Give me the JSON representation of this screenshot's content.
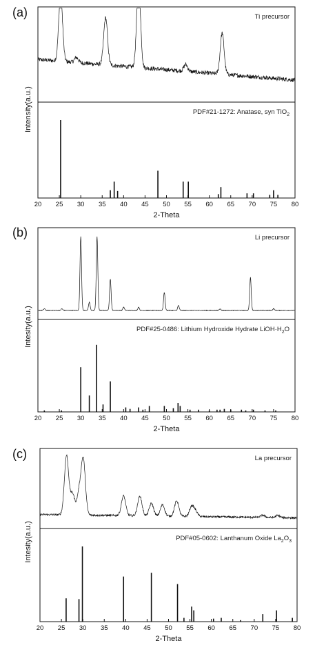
{
  "chart_data": [
    {
      "type": "line",
      "panel_label": "(a)",
      "xlabel": "2-Theta",
      "ylabel": "Intensity(a.u.)",
      "xlim": [
        20,
        80
      ],
      "x_ticks": [
        20,
        25,
        30,
        35,
        40,
        45,
        50,
        55,
        60,
        65,
        70,
        75,
        80
      ],
      "upper": {
        "label": "Ti precursor",
        "baseline": 0.45,
        "peaks": [
          [
            25.3,
            0.78
          ],
          [
            35.8,
            0.55
          ],
          [
            43.5,
            1.0
          ],
          [
            63.0,
            0.48
          ],
          [
            54.5,
            0.08
          ],
          [
            29.0,
            0.06
          ]
        ]
      },
      "lower": {
        "label_main": "PDF#21-1272: Anatase, syn TiO",
        "label_sub": "2",
        "sticks": [
          [
            25.3,
            1.0
          ],
          [
            36.9,
            0.1
          ],
          [
            37.8,
            0.21
          ],
          [
            38.6,
            0.09
          ],
          [
            48.0,
            0.35
          ],
          [
            53.9,
            0.21
          ],
          [
            55.1,
            0.21
          ],
          [
            62.1,
            0.05
          ],
          [
            62.7,
            0.14
          ],
          [
            68.8,
            0.06
          ],
          [
            70.3,
            0.06
          ],
          [
            74.1,
            0.04
          ],
          [
            75.0,
            0.1
          ],
          [
            76.0,
            0.04
          ]
        ]
      }
    },
    {
      "type": "line",
      "panel_label": "(b)",
      "xlabel": "2-Theta",
      "ylabel": "Intesity(a.u.)",
      "xlim": [
        20,
        80
      ],
      "x_ticks": [
        20,
        25,
        30,
        35,
        40,
        45,
        50,
        55,
        60,
        65,
        70,
        75,
        80
      ],
      "upper": {
        "label": "Li precursor",
        "baseline": 0.06,
        "peaks": [
          [
            21.5,
            0.02
          ],
          [
            25.6,
            0.02
          ],
          [
            30.0,
            0.9
          ],
          [
            32.0,
            0.1
          ],
          [
            33.8,
            0.9
          ],
          [
            36.9,
            0.38
          ],
          [
            40.0,
            0.04
          ],
          [
            43.5,
            0.04
          ],
          [
            49.5,
            0.22
          ],
          [
            52.8,
            0.06
          ],
          [
            62.5,
            0.02
          ],
          [
            69.6,
            0.4
          ],
          [
            75.0,
            0.02
          ]
        ]
      },
      "lower": {
        "label_main": "PDF#25-0486: Lithium Hydroxide Hydrate LiOH·H",
        "label_sub": "2",
        "label_tail": "O",
        "sticks": [
          [
            21.5,
            0.02
          ],
          [
            25.5,
            0.02
          ],
          [
            30.0,
            0.6
          ],
          [
            32.0,
            0.22
          ],
          [
            33.7,
            0.9
          ],
          [
            35.2,
            0.1
          ],
          [
            36.9,
            0.41
          ],
          [
            40.5,
            0.06
          ],
          [
            41.5,
            0.04
          ],
          [
            43.5,
            0.06
          ],
          [
            44.5,
            0.03
          ],
          [
            46.0,
            0.08
          ],
          [
            49.5,
            0.08
          ],
          [
            51.6,
            0.05
          ],
          [
            52.7,
            0.12
          ],
          [
            53.2,
            0.08
          ],
          [
            55.5,
            0.03
          ],
          [
            57.5,
            0.03
          ],
          [
            60.0,
            0.02
          ],
          [
            61.8,
            0.03
          ],
          [
            62.5,
            0.03
          ],
          [
            63.5,
            0.04
          ],
          [
            65.0,
            0.03
          ],
          [
            67.5,
            0.03
          ],
          [
            68.5,
            0.02
          ],
          [
            70.3,
            0.03
          ],
          [
            73.0,
            0.02
          ],
          [
            75.5,
            0.02
          ]
        ]
      }
    },
    {
      "type": "line",
      "panel_label": "(c)",
      "xlabel": "2-Theta",
      "ylabel": "Intesity(a.u.)",
      "xlim": [
        20,
        80
      ],
      "x_ticks": [
        20,
        25,
        30,
        35,
        40,
        45,
        50,
        55,
        60,
        65,
        70,
        75,
        80
      ],
      "upper": {
        "label": "La precursor",
        "baseline": 0.14,
        "peaks": [
          [
            26.2,
            0.84
          ],
          [
            27.6,
            0.3
          ],
          [
            29.1,
            0.3
          ],
          [
            30.1,
            0.78
          ],
          [
            39.5,
            0.28
          ],
          [
            43.3,
            0.28
          ],
          [
            46.0,
            0.18
          ],
          [
            48.6,
            0.16
          ],
          [
            51.9,
            0.22
          ],
          [
            55.4,
            0.14
          ],
          [
            56.3,
            0.07
          ],
          [
            72.0,
            0.03
          ],
          [
            75.5,
            0.03
          ]
        ]
      },
      "lower": {
        "label_main": "PDF#05-0602: Lanthanum Oxide La",
        "label_sub": "2",
        "label_tail": "O",
        "label_sub2": "3",
        "sticks": [
          [
            26.1,
            0.31
          ],
          [
            29.1,
            0.3
          ],
          [
            29.9,
            1.0
          ],
          [
            39.5,
            0.6
          ],
          [
            46.0,
            0.65
          ],
          [
            52.1,
            0.5
          ],
          [
            53.6,
            0.05
          ],
          [
            55.4,
            0.2
          ],
          [
            55.9,
            0.15
          ],
          [
            60.5,
            0.04
          ],
          [
            62.3,
            0.05
          ],
          [
            66.8,
            0.02
          ],
          [
            72.0,
            0.1
          ],
          [
            75.2,
            0.15
          ],
          [
            78.9,
            0.05
          ]
        ]
      }
    }
  ]
}
